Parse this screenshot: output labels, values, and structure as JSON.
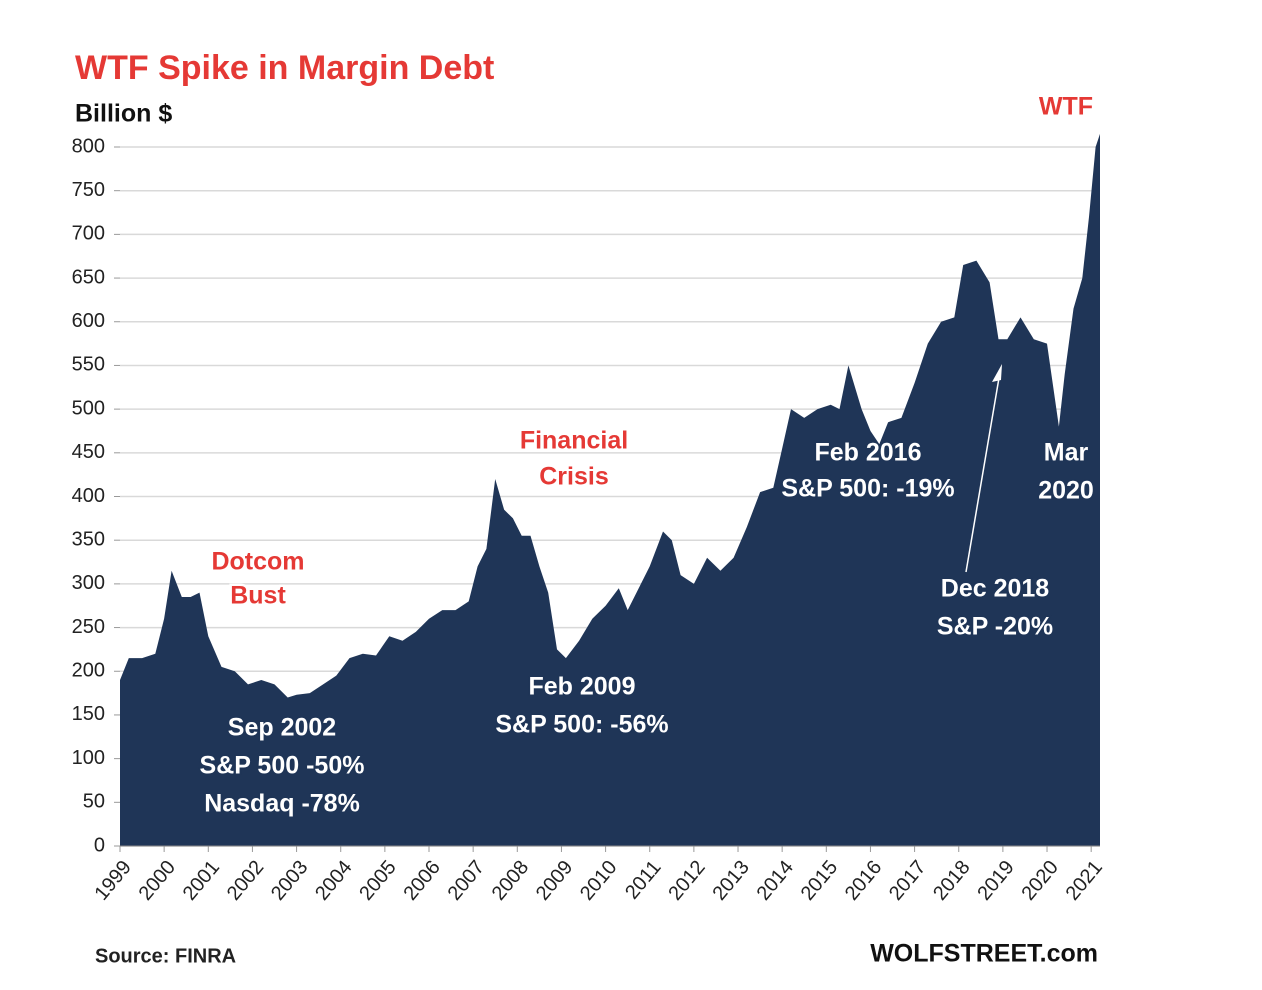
{
  "chart_data": {
    "type": "area",
    "title": "WTF Spike in Margin Debt",
    "y_label": "Billion $",
    "source": "Source: FINRA",
    "brand": "WOLFSTREET.com",
    "color": "#1f3557",
    "grid": true,
    "x": [
      1999.0,
      1999.2,
      1999.5,
      1999.8,
      2000.0,
      2000.17,
      2000.4,
      2000.6,
      2000.8,
      2001.0,
      2001.3,
      2001.6,
      2001.9,
      2002.2,
      2002.5,
      2002.8,
      2003.0,
      2003.3,
      2003.6,
      2003.9,
      2004.2,
      2004.5,
      2004.8,
      2005.1,
      2005.4,
      2005.7,
      2006.0,
      2006.3,
      2006.6,
      2006.9,
      2007.1,
      2007.3,
      2007.5,
      2007.7,
      2007.9,
      2008.1,
      2008.3,
      2008.5,
      2008.7,
      2008.9,
      2009.1,
      2009.4,
      2009.7,
      2010.0,
      2010.3,
      2010.5,
      2010.8,
      2011.0,
      2011.3,
      2011.5,
      2011.7,
      2012.0,
      2012.3,
      2012.6,
      2012.9,
      2013.2,
      2013.5,
      2013.8,
      2014.0,
      2014.2,
      2014.5,
      2014.8,
      2015.1,
      2015.3,
      2015.5,
      2015.8,
      2016.0,
      2016.2,
      2016.4,
      2016.7,
      2017.0,
      2017.3,
      2017.6,
      2017.9,
      2018.1,
      2018.4,
      2018.7,
      2018.9,
      2019.1,
      2019.4,
      2019.7,
      2020.0,
      2020.27,
      2020.4,
      2020.6,
      2020.8,
      2020.95,
      2021.1,
      2021.2
    ],
    "values": [
      190,
      215,
      215,
      220,
      260,
      315,
      285,
      285,
      290,
      240,
      205,
      200,
      185,
      190,
      185,
      170,
      173,
      175,
      185,
      195,
      215,
      220,
      218,
      240,
      235,
      245,
      260,
      270,
      270,
      280,
      320,
      340,
      420,
      385,
      375,
      355,
      355,
      320,
      290,
      225,
      215,
      235,
      260,
      275,
      295,
      270,
      300,
      320,
      360,
      350,
      310,
      300,
      330,
      315,
      330,
      365,
      405,
      410,
      455,
      500,
      490,
      500,
      505,
      500,
      550,
      500,
      475,
      460,
      485,
      490,
      530,
      575,
      600,
      605,
      665,
      670,
      645,
      580,
      580,
      605,
      580,
      575,
      480,
      540,
      615,
      650,
      720,
      800,
      815
    ],
    "xlim": [
      1999,
      2021.2
    ],
    "xticks": [
      1999,
      2000,
      2001,
      2002,
      2003,
      2004,
      2005,
      2006,
      2007,
      2008,
      2009,
      2010,
      2011,
      2012,
      2013,
      2014,
      2015,
      2016,
      2017,
      2018,
      2019,
      2020,
      2021
    ],
    "ylim": [
      0,
      800
    ],
    "yticks": [
      0,
      50,
      100,
      150,
      200,
      250,
      300,
      350,
      400,
      450,
      500,
      550,
      600,
      650,
      700,
      750,
      800
    ],
    "annotations": [
      {
        "lines": [
          "WTF"
        ],
        "color": "#e53935"
      },
      {
        "lines": [
          "Dotcom",
          "Bust"
        ],
        "color": "#e53935"
      },
      {
        "lines": [
          "Sep 2002",
          "S&P 500 -50%",
          "Nasdaq -78%"
        ],
        "color": "#ffffff"
      },
      {
        "lines": [
          "Financial",
          "Crisis"
        ],
        "color": "#e53935"
      },
      {
        "lines": [
          "Feb 2009",
          "S&P 500: -56%"
        ],
        "color": "#ffffff"
      },
      {
        "lines": [
          "Feb 2016",
          "S&P 500: -19%"
        ],
        "color": "#ffffff"
      },
      {
        "lines": [
          "Dec 2018",
          "S&P -20%"
        ],
        "color": "#ffffff"
      },
      {
        "lines": [
          "Mar",
          "2020"
        ],
        "color": "#ffffff"
      }
    ]
  }
}
